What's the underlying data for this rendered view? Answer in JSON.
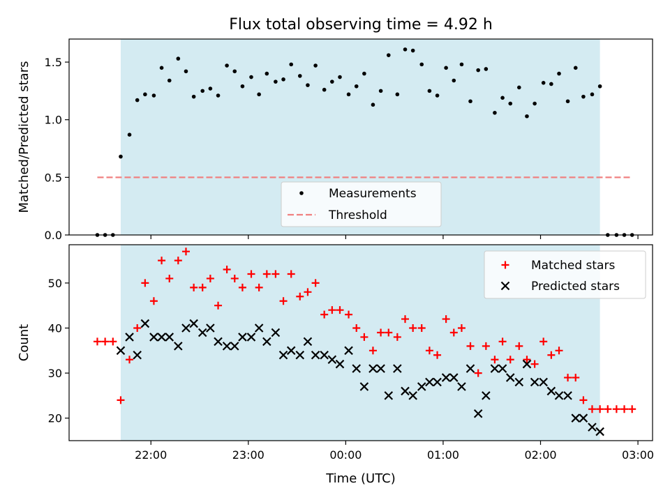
{
  "figure": {
    "title": "Flux total observing time = 4.92 h",
    "xlabel": "Time (UTC)"
  },
  "chart_data": [
    {
      "type": "scatter",
      "panel": "top",
      "title": "Flux total observing time = 4.92 h",
      "ylabel": "Matched/Predicted stars",
      "xlabel": "",
      "x_unit": "hours since 00:00 UTC",
      "xlim": [
        -2.84,
        3.15
      ],
      "ylim": [
        0.0,
        1.7
      ],
      "yticks": [
        0.0,
        0.5,
        1.0,
        1.5
      ],
      "ytick_labels": [
        "0.0",
        "0.5",
        "1.0",
        "1.5"
      ],
      "shaded_region": {
        "x": [
          -2.31,
          2.61
        ],
        "color": "#d4ebf2"
      },
      "legend": {
        "position": "bottom-center",
        "entries": [
          "Measurements",
          "Threshold"
        ]
      },
      "threshold": {
        "name": "Threshold",
        "value": 0.5,
        "x": [
          -2.55,
          2.93
        ],
        "color": "#f08080"
      },
      "series": [
        {
          "name": "Measurements",
          "color": "#000000",
          "x": [
            -2.55,
            -2.47,
            -2.39,
            -2.31,
            -2.22,
            -2.14,
            -2.06,
            -1.97,
            -1.89,
            -1.81,
            -1.72,
            -1.64,
            -1.56,
            -1.47,
            -1.39,
            -1.31,
            -1.22,
            -1.14,
            -1.06,
            -0.97,
            -0.89,
            -0.81,
            -0.72,
            -0.64,
            -0.56,
            -0.47,
            -0.39,
            -0.31,
            -0.22,
            -0.14,
            -0.06,
            0.03,
            0.11,
            0.19,
            0.28,
            0.36,
            0.44,
            0.53,
            0.61,
            0.69,
            0.78,
            0.86,
            0.94,
            1.03,
            1.11,
            1.19,
            1.28,
            1.36,
            1.44,
            1.53,
            1.61,
            1.69,
            1.78,
            1.86,
            1.94,
            2.03,
            2.11,
            2.19,
            2.28,
            2.36,
            2.44,
            2.53,
            2.61,
            2.69,
            2.78,
            2.86,
            2.94
          ],
          "y": [
            0.0,
            0.0,
            0.0,
            0.68,
            0.87,
            1.17,
            1.22,
            1.21,
            1.45,
            1.34,
            1.53,
            1.42,
            1.2,
            1.25,
            1.27,
            1.21,
            1.47,
            1.42,
            1.29,
            1.37,
            1.22,
            1.4,
            1.33,
            1.35,
            1.48,
            1.38,
            1.3,
            1.47,
            1.26,
            1.33,
            1.37,
            1.22,
            1.29,
            1.4,
            1.13,
            1.25,
            1.56,
            1.22,
            1.61,
            1.6,
            1.48,
            1.25,
            1.21,
            1.45,
            1.34,
            1.48,
            1.16,
            1.43,
            1.44,
            1.06,
            1.19,
            1.14,
            1.28,
            1.03,
            1.14,
            1.32,
            1.31,
            1.4,
            1.16,
            1.45,
            1.2,
            1.22,
            1.29,
            0.0,
            0.0,
            0.0,
            0.0
          ]
        }
      ]
    },
    {
      "type": "scatter",
      "panel": "bottom",
      "ylabel": "Count",
      "xlabel": "Time (UTC)",
      "x_unit": "hours since 00:00 UTC",
      "xlim": [
        -2.84,
        3.15
      ],
      "ylim": [
        15,
        58.5
      ],
      "yticks": [
        20,
        30,
        40,
        50
      ],
      "ytick_labels": [
        "20",
        "30",
        "40",
        "50"
      ],
      "xticks": [
        -2,
        -1,
        0,
        1,
        2,
        3
      ],
      "xtick_labels": [
        "22:00",
        "23:00",
        "00:00",
        "01:00",
        "02:00",
        "03:00"
      ],
      "shaded_region": {
        "x": [
          -2.31,
          2.61
        ],
        "color": "#d4ebf2"
      },
      "legend": {
        "position": "top-right",
        "entries": [
          "Matched stars",
          "Predicted stars"
        ]
      },
      "series": [
        {
          "name": "Matched stars",
          "marker": "plus",
          "color": "#ff0000",
          "x": [
            -2.55,
            -2.47,
            -2.39,
            -2.31,
            -2.22,
            -2.14,
            -2.06,
            -1.97,
            -1.89,
            -1.81,
            -1.72,
            -1.64,
            -1.56,
            -1.47,
            -1.39,
            -1.31,
            -1.22,
            -1.14,
            -1.06,
            -0.97,
            -0.89,
            -0.81,
            -0.72,
            -0.64,
            -0.56,
            -0.47,
            -0.39,
            -0.31,
            -0.22,
            -0.14,
            -0.06,
            0.03,
            0.11,
            0.19,
            0.28,
            0.36,
            0.44,
            0.53,
            0.61,
            0.69,
            0.78,
            0.86,
            0.94,
            1.03,
            1.11,
            1.19,
            1.28,
            1.36,
            1.44,
            1.53,
            1.61,
            1.69,
            1.78,
            1.86,
            1.94,
            2.03,
            2.11,
            2.19,
            2.28,
            2.36,
            2.44,
            2.53,
            2.61,
            2.69,
            2.78,
            2.86,
            2.94
          ],
          "y": [
            37,
            37,
            37,
            24,
            33,
            40,
            50,
            46,
            55,
            51,
            55,
            57,
            49,
            49,
            51,
            45,
            53,
            51,
            49,
            52,
            49,
            52,
            52,
            46,
            52,
            47,
            48,
            50,
            43,
            44,
            44,
            43,
            40,
            38,
            35,
            39,
            39,
            38,
            42,
            40,
            40,
            35,
            34,
            42,
            39,
            40,
            36,
            30,
            36,
            33,
            37,
            33,
            36,
            33,
            32,
            37,
            34,
            35,
            29,
            29,
            24,
            22,
            22,
            22,
            22,
            22,
            22
          ]
        },
        {
          "name": "Predicted stars",
          "marker": "x",
          "color": "#000000",
          "x": [
            -2.31,
            -2.22,
            -2.14,
            -2.06,
            -1.97,
            -1.89,
            -1.81,
            -1.72,
            -1.64,
            -1.56,
            -1.47,
            -1.39,
            -1.31,
            -1.22,
            -1.14,
            -1.06,
            -0.97,
            -0.89,
            -0.81,
            -0.72,
            -0.64,
            -0.56,
            -0.47,
            -0.39,
            -0.31,
            -0.22,
            -0.14,
            -0.06,
            0.03,
            0.11,
            0.19,
            0.28,
            0.36,
            0.44,
            0.53,
            0.61,
            0.69,
            0.78,
            0.86,
            0.94,
            1.03,
            1.11,
            1.19,
            1.28,
            1.36,
            1.44,
            1.53,
            1.61,
            1.69,
            1.78,
            1.86,
            1.94,
            2.03,
            2.11,
            2.19,
            2.28,
            2.36,
            2.44,
            2.53,
            2.61
          ],
          "y": [
            35,
            38,
            34,
            41,
            38,
            38,
            38,
            36,
            40,
            41,
            39,
            40,
            37,
            36,
            36,
            38,
            38,
            40,
            37,
            39,
            34,
            35,
            34,
            37,
            34,
            34,
            33,
            32,
            35,
            31,
            27,
            31,
            31,
            25,
            31,
            26,
            25,
            27,
            28,
            28,
            29,
            29,
            27,
            31,
            21,
            25,
            31,
            31,
            29,
            28,
            32,
            28,
            28,
            26,
            25,
            25,
            20,
            20,
            18,
            17
          ]
        }
      ]
    }
  ]
}
